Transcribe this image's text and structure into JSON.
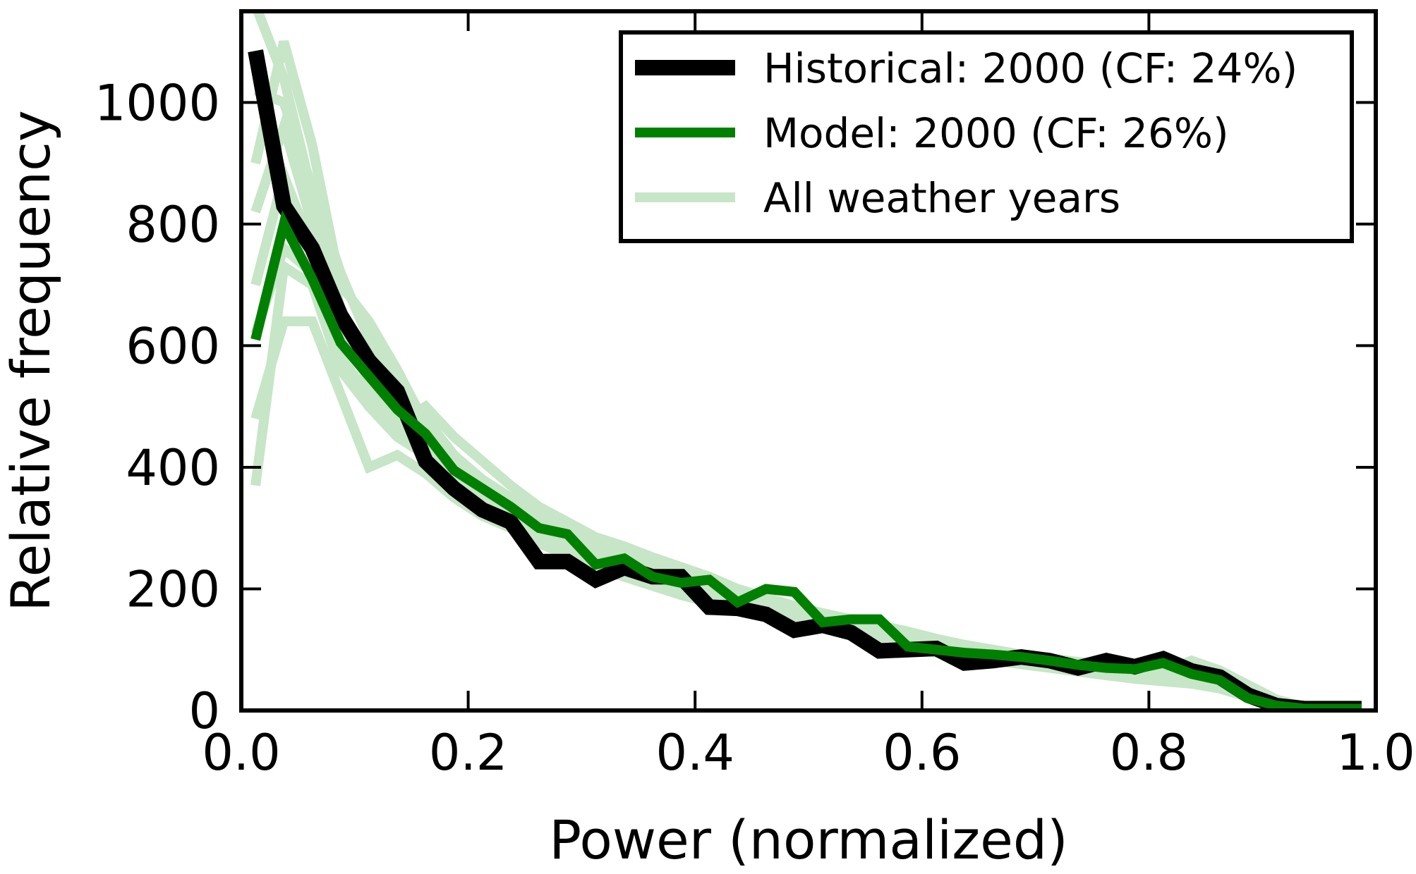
{
  "chart_data": {
    "type": "line",
    "title": "",
    "xlabel": "Power (normalized)",
    "ylabel": "Relative frequency",
    "xlim": [
      0.0,
      1.0
    ],
    "ylim": [
      0,
      1150
    ],
    "xticks": [
      0.0,
      0.2,
      0.4,
      0.6,
      0.8,
      1.0
    ],
    "xtick_labels": [
      "0.0",
      "0.2",
      "0.4",
      "0.6",
      "0.8",
      "1.0"
    ],
    "yticks": [
      0,
      200,
      400,
      600,
      800,
      1000
    ],
    "ytick_labels": [
      "0",
      "200",
      "400",
      "600",
      "800",
      "1000"
    ],
    "grid": false,
    "legend_position": "top-right",
    "x": [
      0.0125,
      0.0375,
      0.0625,
      0.0875,
      0.1125,
      0.1375,
      0.1625,
      0.1875,
      0.2125,
      0.2375,
      0.2625,
      0.2875,
      0.3125,
      0.3375,
      0.3625,
      0.3875,
      0.4125,
      0.4375,
      0.4625,
      0.4875,
      0.5125,
      0.5375,
      0.5625,
      0.5875,
      0.6125,
      0.6375,
      0.6625,
      0.6875,
      0.7125,
      0.7375,
      0.7625,
      0.7875,
      0.8125,
      0.8375,
      0.8625,
      0.8875,
      0.9125,
      0.9375,
      0.9625,
      0.9875
    ],
    "series": [
      {
        "name": "Historical: 2000 (CF: 24%)",
        "color": "#000000",
        "values": [
          1085,
          830,
          760,
          650,
          575,
          525,
          410,
          365,
          330,
          310,
          245,
          245,
          215,
          235,
          220,
          220,
          170,
          168,
          158,
          132,
          140,
          128,
          98,
          100,
          102,
          78,
          82,
          88,
          82,
          70,
          82,
          72,
          85,
          65,
          55,
          25,
          8,
          3,
          3,
          3
        ]
      },
      {
        "name": "Model: 2000 (CF: 26%)",
        "color": "#008000",
        "values": [
          610,
          800,
          710,
          605,
          550,
          495,
          455,
          395,
          365,
          335,
          300,
          290,
          240,
          250,
          220,
          210,
          215,
          178,
          200,
          195,
          145,
          150,
          150,
          105,
          100,
          95,
          92,
          88,
          82,
          75,
          70,
          68,
          78,
          60,
          50,
          20,
          8,
          3,
          3,
          3
        ]
      },
      {
        "name": "All weather years",
        "color": "#c7e5c7",
        "ensemble": [
          [
            900,
            1100,
            930,
            700,
            640,
            560,
            470,
            390,
            360,
            320,
            290,
            270,
            250,
            240,
            230,
            210,
            200,
            180,
            170,
            160,
            150,
            140,
            125,
            115,
            105,
            95,
            90,
            85,
            80,
            75,
            70,
            65,
            60,
            55,
            45,
            30,
            12,
            4,
            3,
            3
          ],
          [
            480,
            640,
            640,
            520,
            400,
            420,
            390,
            350,
            320,
            300,
            280,
            260,
            240,
            225,
            210,
            200,
            185,
            170,
            160,
            150,
            140,
            130,
            120,
            110,
            100,
            92,
            85,
            80,
            75,
            70,
            65,
            60,
            55,
            50,
            40,
            25,
            10,
            4,
            3,
            3
          ],
          [
            1160,
            1040,
            850,
            660,
            560,
            470,
            430,
            380,
            340,
            310,
            290,
            270,
            250,
            235,
            220,
            205,
            190,
            175,
            165,
            155,
            145,
            135,
            125,
            112,
            100,
            92,
            86,
            80,
            74,
            68,
            62,
            56,
            52,
            48,
            38,
            22,
            9,
            4,
            3,
            3
          ],
          [
            370,
            730,
            700,
            560,
            500,
            450,
            420,
            370,
            330,
            300,
            275,
            255,
            235,
            220,
            205,
            190,
            178,
            165,
            155,
            145,
            135,
            125,
            115,
            105,
            95,
            88,
            82,
            76,
            70,
            64,
            58,
            52,
            48,
            44,
            36,
            22,
            9,
            4,
            3,
            3
          ],
          [
            820,
            960,
            800,
            640,
            540,
            480,
            440,
            400,
            355,
            325,
            300,
            280,
            260,
            245,
            230,
            215,
            200,
            185,
            172,
            160,
            150,
            140,
            128,
            118,
            108,
            98,
            92,
            86,
            80,
            74,
            68,
            62,
            58,
            70,
            50,
            35,
            15,
            5,
            3,
            3
          ],
          [
            700,
            880,
            760,
            620,
            560,
            500,
            460,
            420,
            380,
            350,
            320,
            300,
            275,
            260,
            245,
            230,
            215,
            195,
            180,
            168,
            156,
            146,
            135,
            124,
            114,
            104,
            96,
            90,
            84,
            78,
            72,
            66,
            62,
            82,
            66,
            42,
            18,
            6,
            3,
            3
          ],
          [
            620,
            760,
            720,
            580,
            520,
            470,
            500,
            450,
            410,
            370,
            335,
            310,
            285,
            270,
            252,
            236,
            220,
            200,
            186,
            172,
            160,
            150,
            140,
            130,
            118,
            108,
            100,
            92,
            86,
            80,
            74,
            68,
            64,
            58,
            48,
            30,
            12,
            4,
            3,
            3
          ],
          [
            1020,
            1000,
            860,
            720,
            610,
            540,
            480,
            420,
            375,
            345,
            318,
            294,
            272,
            256,
            240,
            224,
            208,
            192,
            178,
            166,
            154,
            144,
            134,
            124,
            114,
            104,
            96,
            90,
            84,
            78,
            72,
            66,
            60,
            56,
            46,
            28,
            11,
            4,
            3,
            3
          ]
        ]
      }
    ]
  }
}
